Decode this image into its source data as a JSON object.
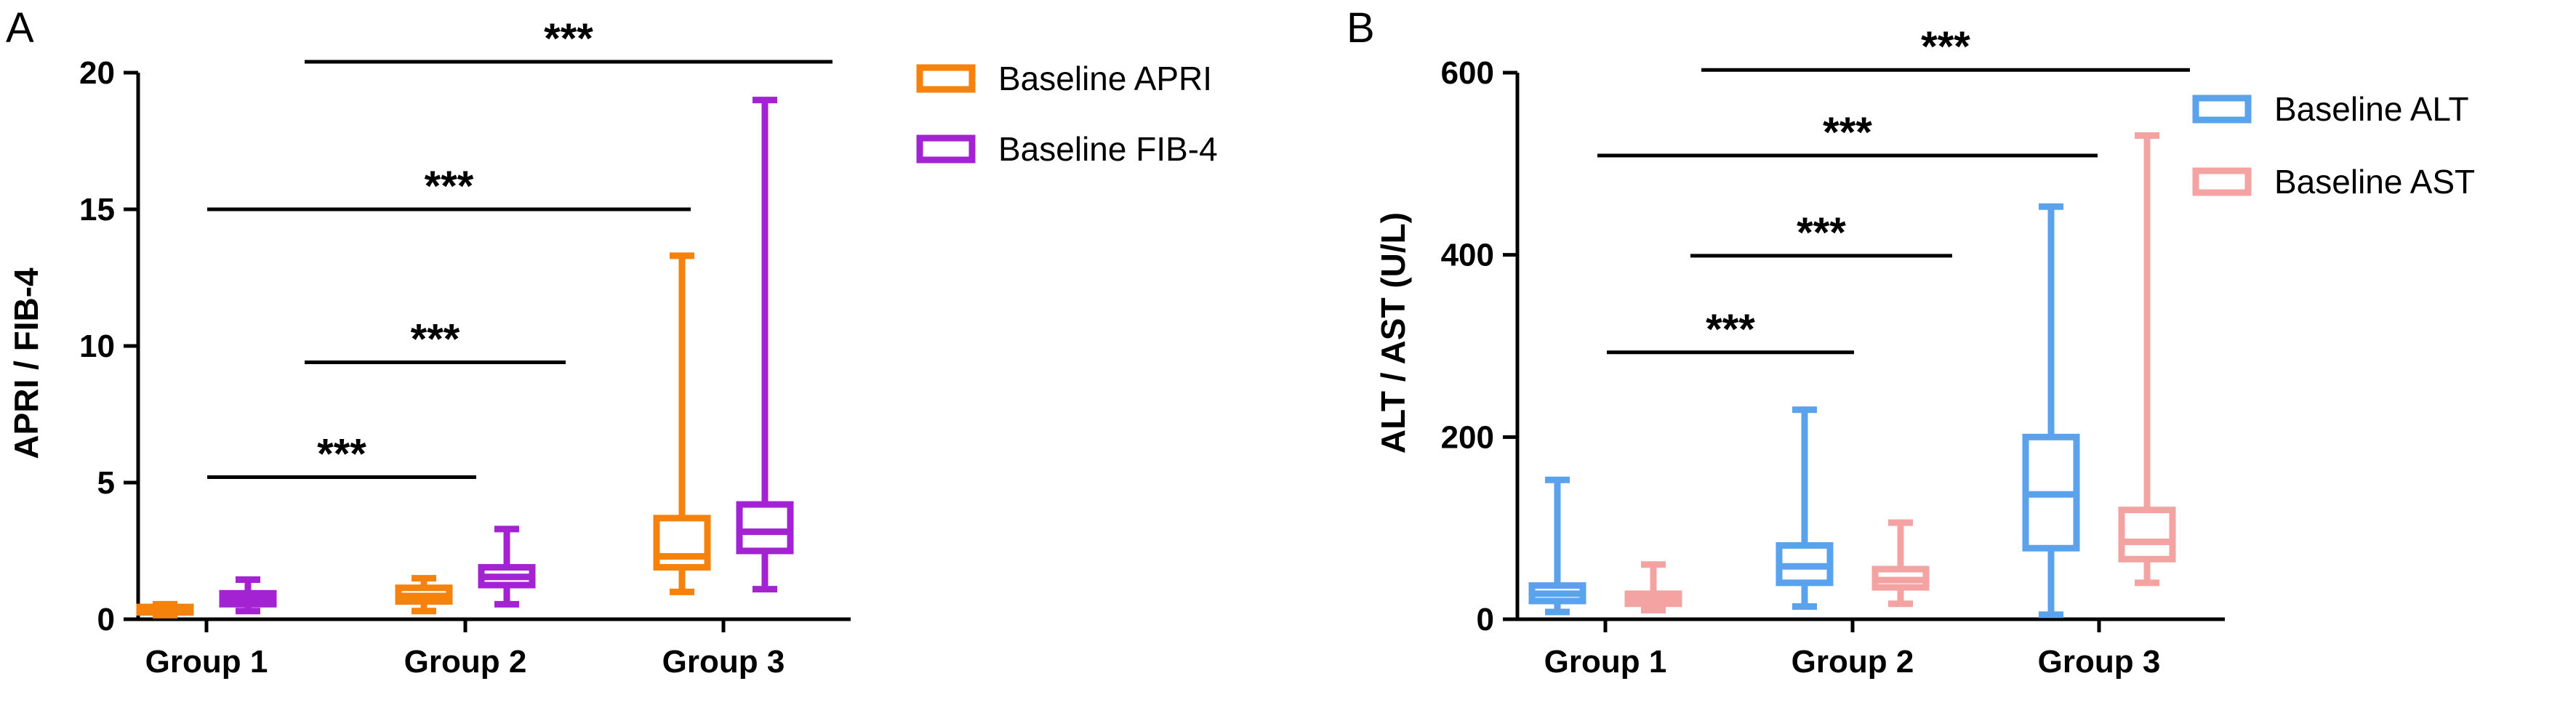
{
  "chart_data": [
    {
      "panel": "A",
      "type": "boxplot",
      "ylabel": "APRI / FIB-4",
      "ylim": [
        0,
        20
      ],
      "yticks": [
        0,
        5,
        10,
        15,
        20
      ],
      "categories": [
        "Group 1",
        "Group 2",
        "Group 3"
      ],
      "legend": "top-right",
      "series": [
        {
          "name": "Baseline APRI",
          "color": "#F5820D",
          "boxes": [
            {
              "min": 0.15,
              "q1": 0.25,
              "median": 0.3,
              "q3": 0.45,
              "max": 0.55
            },
            {
              "min": 0.3,
              "q1": 0.65,
              "median": 0.85,
              "q3": 1.15,
              "max": 1.5
            },
            {
              "min": 1.0,
              "q1": 1.9,
              "median": 2.3,
              "q3": 3.7,
              "max": 13.3
            }
          ]
        },
        {
          "name": "Baseline FIB-4",
          "color": "#A322D1",
          "boxes": [
            {
              "min": 0.3,
              "q1": 0.55,
              "median": 0.75,
              "q3": 0.95,
              "max": 1.45
            },
            {
              "min": 0.55,
              "q1": 1.25,
              "median": 1.55,
              "q3": 1.9,
              "max": 3.3
            },
            {
              "min": 1.1,
              "q1": 2.5,
              "median": 3.2,
              "q3": 4.2,
              "max": 19.0
            }
          ]
        }
      ],
      "significance": [
        {
          "label": "***",
          "y": 5.2,
          "from_group": 0,
          "to_group": 1
        },
        {
          "label": "***",
          "y": 9.4,
          "from_group": 0,
          "to_group": 1
        },
        {
          "label": "***",
          "y": 15.0,
          "from_group": 0,
          "to_group": 2
        },
        {
          "label": "***",
          "y": 20.4,
          "from_group": 0,
          "to_group": 2
        }
      ]
    },
    {
      "panel": "B",
      "type": "boxplot",
      "ylabel": "ALT / AST (U/L)",
      "ylim": [
        0,
        600
      ],
      "yticks": [
        0,
        200,
        400,
        600
      ],
      "categories": [
        "Group 1",
        "Group 2",
        "Group 3"
      ],
      "legend": "top-right",
      "series": [
        {
          "name": "Baseline ALT",
          "color": "#5BA2EC",
          "boxes": [
            {
              "min": 8,
              "q1": 20,
              "median": 28,
              "q3": 37,
              "max": 153
            },
            {
              "min": 14,
              "q1": 40,
              "median": 58,
              "q3": 81,
              "max": 230
            },
            {
              "min": 5,
              "q1": 78,
              "median": 137,
              "q3": 200,
              "max": 453
            }
          ]
        },
        {
          "name": "Baseline AST",
          "color": "#F4A3A3",
          "boxes": [
            {
              "min": 10,
              "q1": 17,
              "median": 22,
              "q3": 28,
              "max": 60
            },
            {
              "min": 17,
              "q1": 35,
              "median": 43,
              "q3": 55,
              "max": 106
            },
            {
              "min": 40,
              "q1": 66,
              "median": 85,
              "q3": 120,
              "max": 531
            }
          ]
        }
      ],
      "significance": [
        {
          "label": "***",
          "y": 293,
          "from_group": 0,
          "to_group": 1
        },
        {
          "label": "***",
          "y": 399,
          "from_group": 0,
          "to_group": 1
        },
        {
          "label": "***",
          "y": 509,
          "from_group": 0,
          "to_group": 2
        },
        {
          "label": "***",
          "y": 603,
          "from_group": 0,
          "to_group": 2
        }
      ]
    }
  ]
}
